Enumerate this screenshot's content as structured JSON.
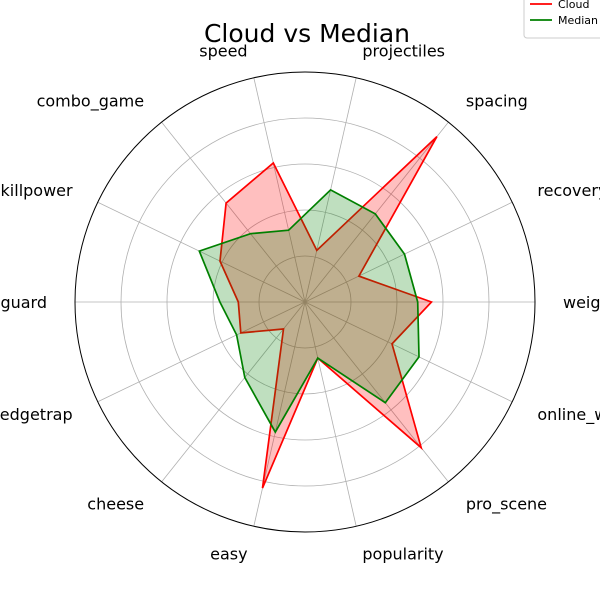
{
  "chart_data": {
    "type": "radar",
    "title": "Cloud vs Median",
    "categories": [
      "weight",
      "recovery",
      "spacing",
      "projectiles",
      "speed",
      "combo_game",
      "killpower",
      "edgeguard",
      "ledgetrap",
      "cheese",
      "easy",
      "popularity",
      "pro_scene",
      "online_winrate"
    ],
    "rlim": [
      0,
      1
    ],
    "grid": true,
    "grid_rings": [
      0.2,
      0.4,
      0.6,
      0.8,
      1.0
    ],
    "legend_position": "top-right",
    "series": [
      {
        "name": "Cloud",
        "color": "#ff0000",
        "fill": "#ff0000",
        "values": [
          0.55,
          0.26,
          0.92,
          0.23,
          0.62,
          0.55,
          0.41,
          0.29,
          0.31,
          0.15,
          0.83,
          0.25,
          0.81,
          0.42
        ]
      },
      {
        "name": "Median",
        "color": "#008000",
        "fill": "#008000",
        "values": [
          0.49,
          0.48,
          0.49,
          0.5,
          0.32,
          0.38,
          0.51,
          0.37,
          0.33,
          0.42,
          0.58,
          0.25,
          0.56,
          0.55
        ]
      }
    ]
  }
}
